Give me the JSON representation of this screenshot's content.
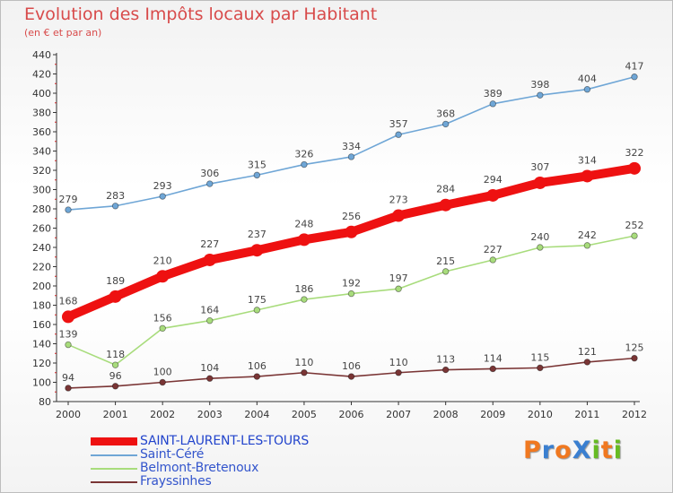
{
  "title": "Evolution des Impôts locaux par Habitant",
  "subtitle": "(en € et par an)",
  "logo": {
    "text": "ProXiti",
    "colors": [
      "#f07820",
      "#3a7fd0",
      "#f07820",
      "#3a7fd0",
      "#66bb22",
      "#f07820",
      "#66bb22"
    ]
  },
  "chart_data": {
    "type": "line",
    "title": "Evolution des Impôts locaux par Habitant",
    "subtitle": "(en € et par an)",
    "xlabel": "",
    "ylabel": "",
    "ylim": [
      80,
      440
    ],
    "yticks": [
      80,
      100,
      120,
      140,
      160,
      180,
      200,
      220,
      240,
      260,
      280,
      300,
      320,
      340,
      360,
      380,
      400,
      420,
      440
    ],
    "grid": false,
    "legend_position": "bottom-left",
    "categories": [
      "2000",
      "2001",
      "2002",
      "2003",
      "2004",
      "2005",
      "2006",
      "2007",
      "2008",
      "2009",
      "2010",
      "2011",
      "2012"
    ],
    "series": [
      {
        "name": "SAINT-LAURENT-LES-TOURS",
        "color": "#ee1111",
        "emphasis": "thick",
        "values": [
          168,
          189,
          210,
          227,
          237,
          248,
          256,
          273,
          284,
          294,
          307,
          314,
          322
        ]
      },
      {
        "name": "Saint-Céré",
        "color": "#6fa6d6",
        "emphasis": "thin",
        "values": [
          279,
          283,
          293,
          306,
          315,
          326,
          334,
          357,
          368,
          389,
          398,
          404,
          417
        ]
      },
      {
        "name": "Belmont-Bretenoux",
        "color": "#a8dc7c",
        "emphasis": "thin",
        "values": [
          139,
          118,
          156,
          164,
          175,
          186,
          192,
          197,
          215,
          227,
          240,
          242,
          252
        ]
      },
      {
        "name": "Frayssinhes",
        "color": "#7a3535",
        "emphasis": "thin",
        "values": [
          94,
          96,
          100,
          104,
          106,
          110,
          106,
          110,
          113,
          114,
          115,
          121,
          125
        ]
      }
    ]
  }
}
